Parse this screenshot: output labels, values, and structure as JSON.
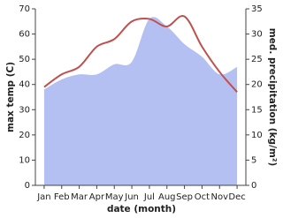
{
  "chart_data": {
    "type": "line_area",
    "x_label": "date (month)",
    "y_label": "max temp (C)",
    "y2_label": "med. precipitation (kg/m²)",
    "categories": [
      "Jan",
      "Feb",
      "Mar",
      "Apr",
      "May",
      "Jun",
      "Jul",
      "Aug",
      "Sep",
      "Oct",
      "Nov",
      "Dec"
    ],
    "series": [
      {
        "name": "med. precipitation",
        "color": "#b4c0f2",
        "axis": "y2",
        "kind": "area",
        "values": [
          19,
          21,
          22,
          22,
          24,
          24.5,
          33,
          31.5,
          28,
          25.5,
          22,
          23.5
        ]
      },
      {
        "name": "max temp",
        "color": "#c0504d",
        "kind": "line",
        "values": [
          39,
          44,
          47,
          55,
          58,
          65,
          66,
          63,
          67,
          55,
          45,
          37
        ]
      }
    ],
    "ylim": [
      0,
      70
    ],
    "yticks": [
      0,
      10,
      20,
      30,
      40,
      50,
      60,
      70
    ],
    "y2lim": [
      0,
      35
    ],
    "y2ticks": [
      0,
      5,
      10,
      15,
      20,
      25,
      30,
      35
    ]
  }
}
